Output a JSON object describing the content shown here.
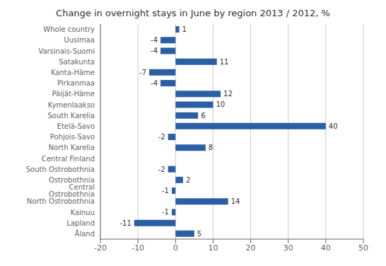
{
  "chart_data": {
    "type": "bar",
    "orientation": "horizontal",
    "title": "Change in overnight stays in June by region 2013 / 2012, %",
    "categories": [
      "Whole country",
      "Uusimaa",
      "Varsinais-Suomi",
      "Satakunta",
      "Kanta-Häme",
      "Pirkanmaa",
      "Päijät-Häme",
      "Kymenlaakso",
      "South Karelia",
      "Etelä-Savo",
      "Pohjois-Savo",
      "North Karelia",
      "Central Finland",
      "South Ostrobothnia",
      "Ostrobothnia",
      "Central Ostrobothnia",
      "North Ostrobothnia",
      "Kainuu",
      "Lapland",
      "Åland"
    ],
    "values": [
      1,
      -4,
      -4,
      11,
      -7,
      -4,
      12,
      10,
      6,
      40,
      -2,
      8,
      0,
      -2,
      2,
      -1,
      14,
      -1,
      -11,
      5
    ],
    "color": "#2B5FA5",
    "xlim": [
      -20,
      50
    ],
    "xticks": [
      -20,
      -10,
      0,
      10,
      20,
      30,
      40,
      50
    ],
    "grid": true,
    "data_labels": true
  }
}
